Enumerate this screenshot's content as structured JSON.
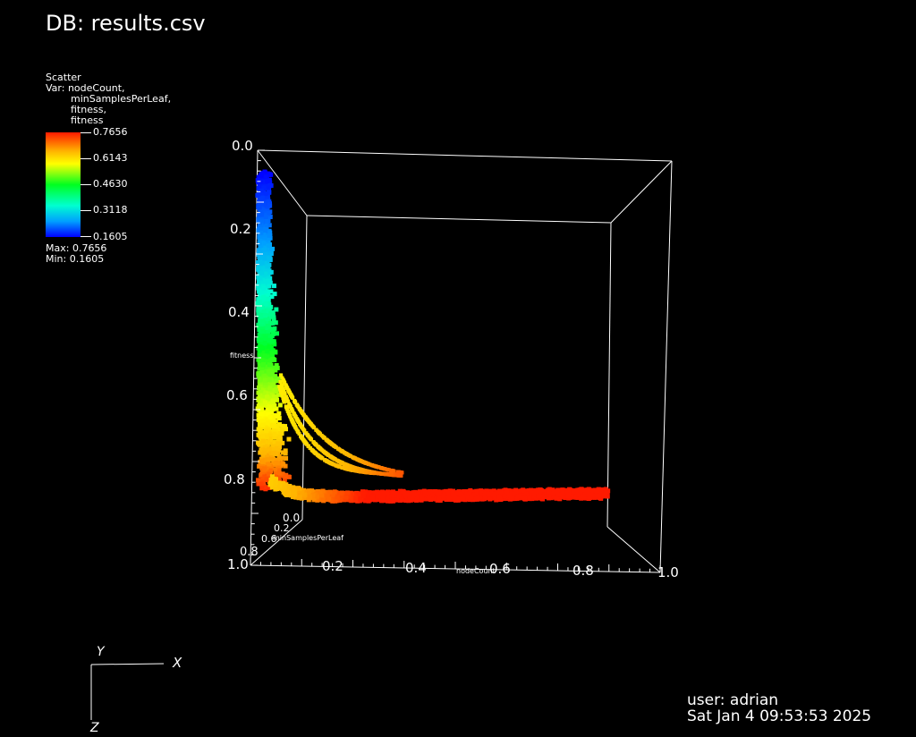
{
  "header": {
    "title": "DB: results.csv"
  },
  "legend": {
    "plot_type": "Scatter",
    "var_label": "Var: nodeCount,",
    "var_cont": [
      "minSamplesPerLeaf,",
      "fitness,",
      "fitness"
    ],
    "ticks": [
      "0.7656",
      "0.6143",
      "0.4630",
      "0.3118",
      "0.1605"
    ],
    "max_text": "Max:  0.7656",
    "min_text": "Min:  0.1605",
    "colormap": [
      "#0000ff",
      "#00a0ff",
      "#00ffd0",
      "#00ff20",
      "#ffff00",
      "#ffb400",
      "#ff1a00"
    ]
  },
  "footer": {
    "user": "user: adrian",
    "date": "Sat Jan  4 09:53:53 2025"
  },
  "triad": {
    "x": "X",
    "y": "Y",
    "z": "Z"
  },
  "chart_data": {
    "type": "scatter",
    "title": "DB: results.csv",
    "xlabel": "nodeCount",
    "ylabel": "fitness",
    "zlabel": "minSamplesPerLeaf",
    "x_ticks": [
      "0.2",
      "0.4",
      "0.6",
      "0.8",
      "1.0"
    ],
    "y_ticks": [
      "0.0",
      "0.2",
      "0.4",
      "0.6",
      "0.8"
    ],
    "z_ticks": [
      "0.0",
      "0.2",
      "0.6",
      "0.8",
      "1.0"
    ],
    "xlim": [
      0,
      1
    ],
    "ylim": [
      0,
      1
    ],
    "zlim": [
      0,
      1
    ],
    "color_var": "fitness",
    "color_range": [
      0.1605,
      0.7656
    ],
    "series": [
      {
        "x": [
          0.01,
          0.02,
          0.03,
          0.05,
          0.06,
          0.08,
          0.1,
          0.12,
          0.15,
          0.18,
          0.22,
          0.28,
          0.35,
          0.45,
          0.55,
          0.65,
          0.75,
          0.85,
          0.9,
          0.95,
          1.0
        ],
        "y": [
          0.05,
          0.1,
          0.2,
          0.3,
          0.4,
          0.5,
          0.6,
          0.68,
          0.74,
          0.78,
          0.82,
          0.84,
          0.86,
          0.87,
          0.88,
          0.885,
          0.89,
          0.895,
          0.9,
          0.9,
          0.9
        ]
      }
    ]
  }
}
